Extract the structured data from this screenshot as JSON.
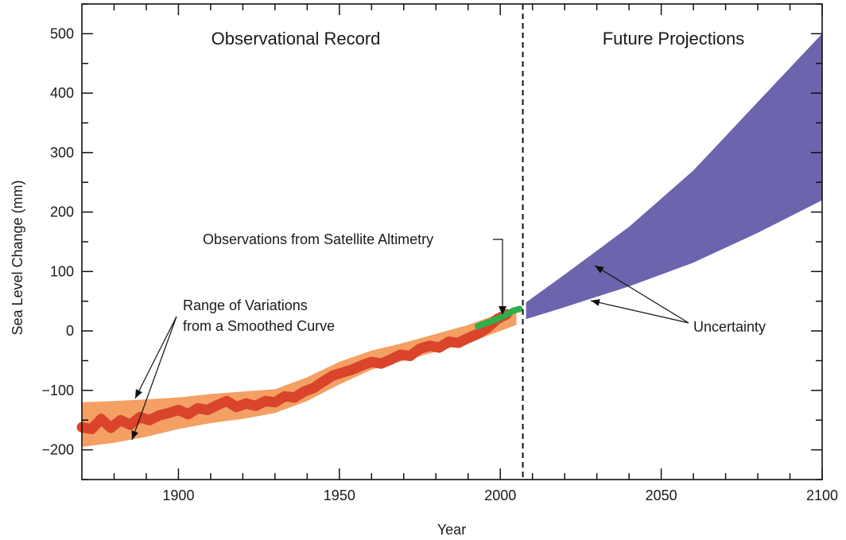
{
  "chart_data": {
    "type": "area",
    "xlabel": "Year",
    "ylabel": "Sea Level Change (mm)",
    "xlim": [
      1870,
      2100
    ],
    "ylim": [
      -250,
      550
    ],
    "xticks": [
      {
        "value": 1900,
        "label": "1900"
      },
      {
        "value": 1950,
        "label": "1950"
      },
      {
        "value": 2000,
        "label": "2000"
      },
      {
        "value": 2050,
        "label": "2050"
      },
      {
        "value": 2100,
        "label": "2100"
      }
    ],
    "yticks": [
      {
        "value": -200,
        "label": "−200"
      },
      {
        "value": -100,
        "label": "−100"
      },
      {
        "value": 0,
        "label": "0"
      },
      {
        "value": 100,
        "label": "100"
      },
      {
        "value": 200,
        "label": "200"
      },
      {
        "value": 300,
        "label": "300"
      },
      {
        "value": 400,
        "label": "400"
      },
      {
        "value": 500,
        "label": "500"
      }
    ],
    "divider_year": 2007,
    "section_labels": {
      "left": "Observational Record",
      "right": "Future Projections"
    },
    "annotations": {
      "range": [
        "Range of Variations",
        "from a Smoothed Curve"
      ],
      "satellite": "Observations from Satellite Altimetry",
      "uncertainty": "Uncertainty"
    },
    "colors": {
      "range_band": "#f4a064",
      "tide_gauge": "#d9442b",
      "satellite": "#2fae4a",
      "projection": "#6c64ad"
    },
    "series": [
      {
        "kind": "band",
        "x": [
          1870,
          1880,
          1890,
          1900,
          1910,
          1920,
          1930,
          1940,
          1950,
          1960,
          1970,
          1980,
          1990,
          2000,
          2005
        ],
        "lower": [
          -195,
          -188,
          -178,
          -165,
          -155,
          -148,
          -138,
          -118,
          -90,
          -65,
          -50,
          -35,
          -20,
          0,
          10
        ],
        "upper": [
          -120,
          -118,
          -115,
          -112,
          -106,
          -102,
          -98,
          -78,
          -52,
          -33,
          -20,
          -5,
          10,
          30,
          35
        ]
      },
      {
        "kind": "line",
        "x": [
          1870,
          1873,
          1876,
          1879,
          1882,
          1885,
          1888,
          1891,
          1894,
          1897,
          1900,
          1903,
          1906,
          1909,
          1912,
          1915,
          1918,
          1921,
          1924,
          1927,
          1930,
          1933,
          1936,
          1939,
          1942,
          1945,
          1948,
          1951,
          1954,
          1957,
          1960,
          1963,
          1966,
          1969,
          1972,
          1975,
          1978,
          1981,
          1984,
          1987,
          1990,
          1993,
          1996,
          1999,
          2002
        ],
        "y": [
          -162,
          -165,
          -148,
          -163,
          -150,
          -158,
          -145,
          -150,
          -142,
          -138,
          -133,
          -140,
          -130,
          -133,
          -125,
          -118,
          -128,
          -122,
          -126,
          -118,
          -120,
          -110,
          -112,
          -102,
          -96,
          -85,
          -75,
          -70,
          -65,
          -58,
          -52,
          -55,
          -48,
          -40,
          -42,
          -30,
          -25,
          -28,
          -18,
          -20,
          -12,
          -5,
          5,
          20,
          28
        ]
      },
      {
        "kind": "line",
        "x": [
          1993,
          1996,
          1999,
          2002,
          2004,
          2006
        ],
        "y": [
          8,
          14,
          20,
          28,
          34,
          37
        ]
      },
      {
        "kind": "band",
        "x": [
          2008,
          2020,
          2040,
          2060,
          2080,
          2100
        ],
        "lower": [
          20,
          40,
          75,
          115,
          165,
          220
        ],
        "upper": [
          48,
          95,
          175,
          270,
          385,
          500
        ]
      }
    ]
  }
}
